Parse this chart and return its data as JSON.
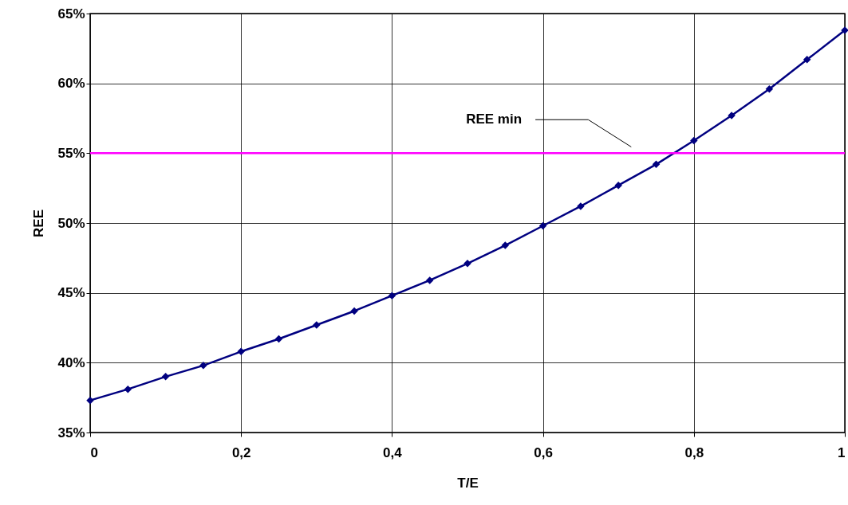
{
  "chart_data": {
    "type": "line",
    "xlabel": "T/E",
    "ylabel": "REE",
    "x": [
      0,
      0.05,
      0.1,
      0.15,
      0.2,
      0.25,
      0.3,
      0.35,
      0.4,
      0.45,
      0.5,
      0.55,
      0.6,
      0.65,
      0.7,
      0.75,
      0.8,
      0.85,
      0.9,
      0.95,
      1
    ],
    "series": [
      {
        "color": "#000080",
        "values": [
          37.3,
          38.1,
          39.0,
          39.8,
          40.8,
          41.7,
          42.7,
          43.7,
          44.8,
          45.9,
          47.1,
          48.4,
          49.8,
          51.2,
          52.7,
          54.2,
          55.9,
          57.7,
          59.6,
          61.7,
          63.8
        ]
      }
    ],
    "xlim": [
      0,
      1
    ],
    "xticks": [
      0,
      {
        "value": 0.2,
        "label": "0,2"
      },
      {
        "value": 0.4,
        "label": "0,4"
      },
      {
        "value": 0.6,
        "label": "0,6"
      },
      {
        "value": 0.8,
        "label": "0,8"
      },
      1
    ],
    "ylim": [
      35,
      65
    ],
    "yticks": [
      {
        "value": 35,
        "label": "35%"
      },
      {
        "value": 40,
        "label": "40%"
      },
      {
        "value": 45,
        "label": "45%"
      },
      {
        "value": 50,
        "label": "50%"
      },
      {
        "value": 55,
        "label": "55%"
      },
      {
        "value": 60,
        "label": "60%"
      },
      {
        "value": 65,
        "label": "65%"
      }
    ],
    "ref_lines": [
      {
        "axis": "y",
        "value": 55,
        "label": "REE min",
        "color": "#ff00ff"
      }
    ],
    "grid": true,
    "marker": "diamond",
    "line_style": "solid"
  }
}
